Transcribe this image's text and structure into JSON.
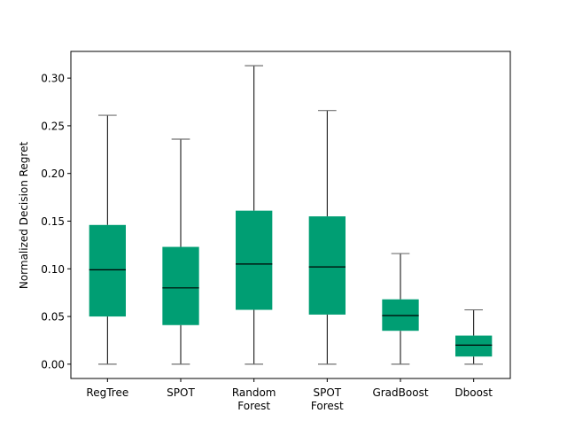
{
  "chart_data": {
    "type": "box",
    "title": "",
    "xlabel": "",
    "ylabel": "Normalized Decision Regret",
    "ylim": [
      -0.015,
      0.328
    ],
    "yticks": [
      0.0,
      0.05,
      0.1,
      0.15,
      0.2,
      0.25,
      0.3
    ],
    "ytick_labels": [
      "0.00",
      "0.05",
      "0.10",
      "0.15",
      "0.20",
      "0.25",
      "0.30"
    ],
    "grid": false,
    "box_color": "#009E73",
    "median_color": "#000000",
    "whisker_color": "#000000",
    "cap_color": "#707070",
    "categories": [
      {
        "label_lines": [
          "RegTree"
        ],
        "whislo": 0.0,
        "q1": 0.05,
        "median": 0.099,
        "q3": 0.146,
        "whishi": 0.261
      },
      {
        "label_lines": [
          "SPOT"
        ],
        "whislo": 0.0,
        "q1": 0.041,
        "median": 0.08,
        "q3": 0.123,
        "whishi": 0.236
      },
      {
        "label_lines": [
          "Random",
          "Forest"
        ],
        "whislo": 0.0,
        "q1": 0.057,
        "median": 0.105,
        "q3": 0.161,
        "whishi": 0.313
      },
      {
        "label_lines": [
          "SPOT",
          "Forest"
        ],
        "whislo": 0.0,
        "q1": 0.052,
        "median": 0.102,
        "q3": 0.155,
        "whishi": 0.266
      },
      {
        "label_lines": [
          "GradBoost"
        ],
        "whislo": 0.0,
        "q1": 0.035,
        "median": 0.051,
        "q3": 0.068,
        "whishi": 0.116
      },
      {
        "label_lines": [
          "Dboost"
        ],
        "whislo": 0.0,
        "q1": 0.008,
        "median": 0.02,
        "q3": 0.03,
        "whishi": 0.057
      }
    ]
  }
}
